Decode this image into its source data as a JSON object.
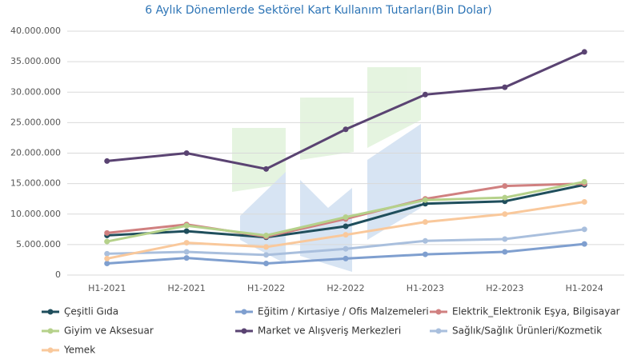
{
  "chart_data": {
    "type": "line",
    "title": "6 Aylık Dönemlerde Sektörel Kart Kullanım Tutarları(Bin Dolar)",
    "categories": [
      "H1-2021",
      "H2-2021",
      "H1-2022",
      "H2-2022",
      "H1-2023",
      "H2-2023",
      "H1-2024"
    ],
    "series": [
      {
        "name": "Çeşitli Gıda",
        "color": "#1f4e5c",
        "values": [
          6500000,
          7200000,
          6200000,
          8000000,
          11700000,
          12100000,
          14800000
        ]
      },
      {
        "name": "Eğitim / Kırtasiye / Ofis Malzemeleri",
        "color": "#7f9fcf",
        "values": [
          1900000,
          2800000,
          1900000,
          2700000,
          3400000,
          3800000,
          5100000
        ]
      },
      {
        "name": "Elektrik_Elektronik Eşya, Bilgisayar",
        "color": "#d08080",
        "values": [
          6900000,
          8300000,
          6300000,
          9200000,
          12500000,
          14600000,
          15000000
        ]
      },
      {
        "name": "Giyim ve Aksesuar",
        "color": "#b5d18a",
        "values": [
          5500000,
          8100000,
          6500000,
          9500000,
          12300000,
          12700000,
          15300000
        ]
      },
      {
        "name": "Market ve Alışveriş Merkezleri",
        "color": "#5a4372",
        "values": [
          18700000,
          20000000,
          17400000,
          23900000,
          29600000,
          30800000,
          36600000
        ]
      },
      {
        "name": "Sağlık/Sağlık Ürünleri/Kozmetik",
        "color": "#a9bfdd",
        "values": [
          3500000,
          3800000,
          3300000,
          4300000,
          5600000,
          5900000,
          7500000
        ]
      },
      {
        "name": "Yemek",
        "color": "#f9c89b",
        "values": [
          2700000,
          5300000,
          4600000,
          6600000,
          8700000,
          10000000,
          12000000
        ]
      }
    ],
    "ylim": [
      0,
      40000000
    ],
    "yticks": [
      0,
      {
        "value": 5000000,
        "label": "5.000.000"
      },
      {
        "value": 10000000,
        "label": "10.000.000"
      },
      {
        "value": 15000000,
        "label": "15.000.000"
      },
      {
        "value": 20000000,
        "label": "20.000.000"
      },
      {
        "value": 25000000,
        "label": "25.000.000"
      },
      {
        "value": 30000000,
        "label": "30.000.000"
      },
      {
        "value": 35000000,
        "label": "35.000.000"
      },
      {
        "value": 40000000,
        "label": "40.000.000"
      }
    ],
    "grid": true,
    "legend": "bottom"
  }
}
